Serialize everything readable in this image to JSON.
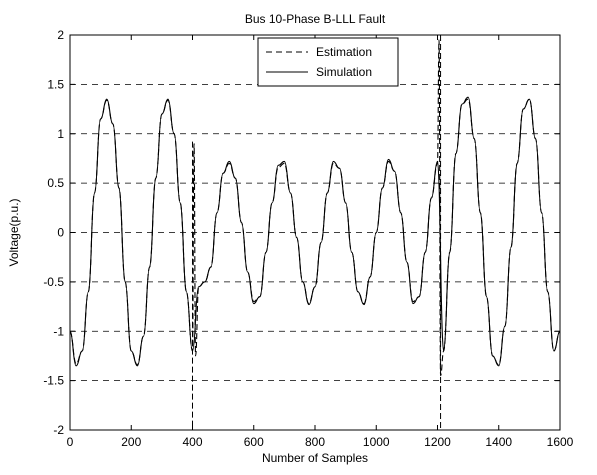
{
  "chart_data": {
    "type": "line",
    "title": "Bus 10-Phase B-LLL Fault",
    "xlabel": "Number of Samples",
    "ylabel": "Voltage(p.u.)",
    "xlim": [
      0,
      1600
    ],
    "ylim": [
      -2,
      2
    ],
    "x_ticks": [
      0,
      200,
      400,
      600,
      800,
      1000,
      1200,
      1400,
      1600
    ],
    "y_ticks": [
      -2,
      -1.5,
      -1,
      -0.5,
      0,
      0.5,
      1,
      1.5,
      2
    ],
    "x_tick_labels": [
      "0",
      "200",
      "400",
      "600",
      "800",
      "1000",
      "1200",
      "1400",
      "1600"
    ],
    "y_tick_labels": [
      "-2",
      "-1.5",
      "-1",
      "-0.5",
      "0",
      "0.5",
      "1",
      "1.5",
      "2"
    ],
    "grid": "horizontal dashed",
    "legend_position": "top-center",
    "legend": [
      "Estimation",
      "Simulation"
    ],
    "series": [
      {
        "name": "Estimation",
        "style": "dashed",
        "color": "#000000",
        "x": [
          0,
          20,
          40,
          60,
          80,
          100,
          120,
          140,
          160,
          180,
          200,
          220,
          240,
          260,
          280,
          300,
          320,
          340,
          360,
          380,
          400,
          405,
          410,
          420,
          440,
          460,
          480,
          500,
          520,
          540,
          560,
          580,
          600,
          620,
          640,
          660,
          680,
          700,
          720,
          740,
          760,
          780,
          800,
          820,
          840,
          860,
          880,
          900,
          920,
          940,
          960,
          980,
          1000,
          1020,
          1040,
          1060,
          1080,
          1100,
          1120,
          1140,
          1160,
          1180,
          1200,
          1205,
          1210,
          1220,
          1240,
          1260,
          1280,
          1300,
          1320,
          1340,
          1360,
          1380,
          1400,
          1420,
          1440,
          1460,
          1480,
          1500,
          1520,
          1540,
          1560,
          1580,
          1600
        ],
        "y": [
          -1.0,
          -1.33,
          -1.2,
          -0.6,
          0.4,
          1.15,
          1.34,
          1.1,
          0.45,
          -0.5,
          -1.2,
          -1.34,
          -1.05,
          -0.35,
          0.55,
          1.2,
          1.34,
          1.0,
          0.3,
          -0.6,
          -1.2,
          0.9,
          -1.25,
          -0.55,
          -0.5,
          -0.35,
          0.2,
          0.6,
          0.7,
          0.55,
          0.1,
          -0.4,
          -0.7,
          -0.65,
          -0.2,
          0.3,
          0.66,
          0.7,
          0.4,
          -0.05,
          -0.5,
          -0.72,
          -0.55,
          -0.1,
          0.4,
          0.7,
          0.65,
          0.3,
          -0.2,
          -0.6,
          -0.72,
          -0.45,
          0.0,
          0.45,
          0.72,
          0.62,
          0.2,
          -0.3,
          -0.7,
          -0.65,
          -0.2,
          0.35,
          0.7,
          1.95,
          -1.45,
          -1.2,
          -0.2,
          0.8,
          1.3,
          1.35,
          0.95,
          0.2,
          -0.65,
          -1.25,
          -1.34,
          -0.95,
          -0.15,
          0.7,
          1.25,
          1.35,
          0.95,
          0.2,
          -0.6,
          -1.2,
          -1.0
        ],
        "markers": [
          {
            "x": 400,
            "y_top": 0.92,
            "y_bottom": -2.0
          },
          {
            "x": 1210,
            "y_top": 2.0,
            "y_bottom": -2.0
          }
        ]
      },
      {
        "name": "Simulation",
        "style": "solid",
        "color": "#000000",
        "x": [
          0,
          20,
          40,
          60,
          80,
          100,
          120,
          140,
          160,
          180,
          200,
          220,
          240,
          260,
          280,
          300,
          320,
          340,
          360,
          380,
          400,
          420,
          440,
          460,
          480,
          500,
          520,
          540,
          560,
          580,
          600,
          620,
          640,
          660,
          680,
          700,
          720,
          740,
          760,
          780,
          800,
          820,
          840,
          860,
          880,
          900,
          920,
          940,
          960,
          980,
          1000,
          1020,
          1040,
          1060,
          1080,
          1100,
          1120,
          1140,
          1160,
          1180,
          1200,
          1220,
          1240,
          1260,
          1280,
          1300,
          1320,
          1340,
          1360,
          1380,
          1400,
          1420,
          1440,
          1460,
          1480,
          1500,
          1520,
          1540,
          1560,
          1580,
          1600
        ],
        "y": [
          -1.0,
          -1.35,
          -1.2,
          -0.6,
          0.4,
          1.15,
          1.35,
          1.1,
          0.45,
          -0.5,
          -1.2,
          -1.35,
          -1.05,
          -0.35,
          0.55,
          1.2,
          1.35,
          1.0,
          0.3,
          -0.6,
          -1.2,
          -0.55,
          -0.5,
          -0.35,
          0.2,
          0.6,
          0.72,
          0.55,
          0.1,
          -0.4,
          -0.72,
          -0.65,
          -0.2,
          0.3,
          0.68,
          0.72,
          0.4,
          -0.05,
          -0.5,
          -0.73,
          -0.55,
          -0.1,
          0.4,
          0.72,
          0.65,
          0.3,
          -0.2,
          -0.6,
          -0.73,
          -0.45,
          0.0,
          0.45,
          0.74,
          0.62,
          0.2,
          -0.3,
          -0.72,
          -0.65,
          -0.2,
          0.35,
          0.72,
          -1.2,
          -0.2,
          0.8,
          1.3,
          1.37,
          0.95,
          0.2,
          -0.65,
          -1.25,
          -1.35,
          -0.95,
          -0.15,
          0.7,
          1.25,
          1.35,
          0.95,
          0.2,
          -0.6,
          -1.2,
          -1.0
        ]
      }
    ]
  }
}
